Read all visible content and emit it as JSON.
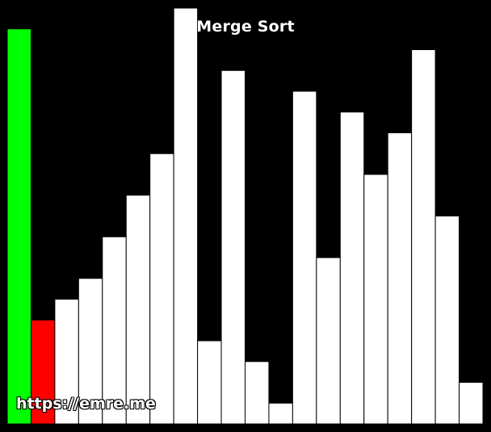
{
  "title": "Merge Sort",
  "watermark": "https://emre.me",
  "colors": {
    "background": "#000000",
    "bar_default": "#ffffff",
    "bar_outline": "#000000",
    "bar_compare_left": "#00ff00",
    "bar_compare_right": "#ff0000",
    "text": "#ffffff"
  },
  "bars": [
    {
      "value": 19,
      "state": "compare_left"
    },
    {
      "value": 5,
      "state": "compare_right"
    },
    {
      "value": 6,
      "state": "default"
    },
    {
      "value": 7,
      "state": "default"
    },
    {
      "value": 9,
      "state": "default"
    },
    {
      "value": 11,
      "state": "default"
    },
    {
      "value": 13,
      "state": "default"
    },
    {
      "value": 20,
      "state": "default"
    },
    {
      "value": 4,
      "state": "default"
    },
    {
      "value": 17,
      "state": "default"
    },
    {
      "value": 3,
      "state": "default"
    },
    {
      "value": 1,
      "state": "default"
    },
    {
      "value": 16,
      "state": "default"
    },
    {
      "value": 8,
      "state": "default"
    },
    {
      "value": 15,
      "state": "default"
    },
    {
      "value": 12,
      "state": "default"
    },
    {
      "value": 14,
      "state": "default"
    },
    {
      "value": 18,
      "state": "default"
    },
    {
      "value": 10,
      "state": "default"
    },
    {
      "value": 2,
      "state": "default"
    }
  ]
}
